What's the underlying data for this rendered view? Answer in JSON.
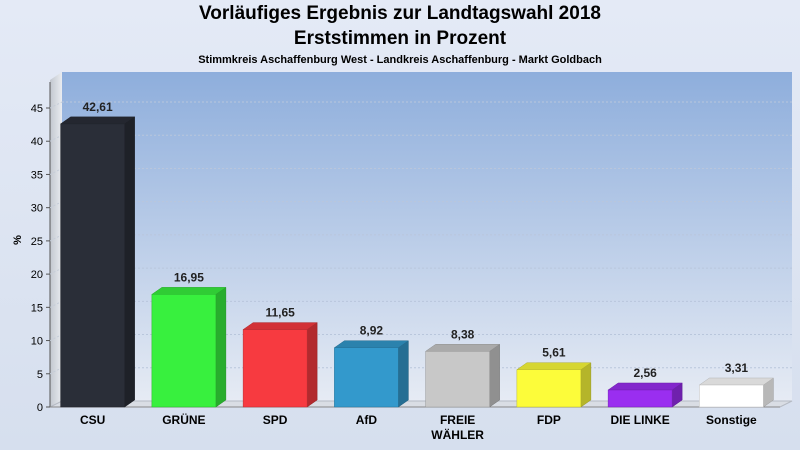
{
  "chart_data": {
    "type": "bar",
    "title": "Vorläufiges Ergebnis zur Landtagswahl 2018",
    "title_line2": "Erststimmen in Prozent",
    "subtitle": "Stimmkreis Aschaffenburg West - Landkreis Aschaffenburg - Markt Goldbach",
    "ylabel": "%",
    "ylim": [
      0,
      48
    ],
    "yticks": [
      "0",
      "5",
      "10",
      "15",
      "20",
      "25",
      "30",
      "35",
      "40",
      "45"
    ],
    "grid": true,
    "categories": [
      "CSU",
      "GRÜNE",
      "SPD",
      "AfD",
      "FREIE WÄHLER",
      "FDP",
      "DIE LINKE",
      "Sonstige"
    ],
    "category_labels": [
      [
        "CSU"
      ],
      [
        "GRÜNE"
      ],
      [
        "SPD"
      ],
      [
        "AfD"
      ],
      [
        "FREIE",
        "WÄHLER"
      ],
      [
        "FDP"
      ],
      [
        "DIE LINKE"
      ],
      [
        "Sonstige"
      ]
    ],
    "values": [
      42.61,
      16.95,
      11.65,
      8.92,
      8.38,
      5.61,
      2.56,
      3.31
    ],
    "value_labels": [
      "42,61",
      "16,95",
      "11,65",
      "8,92",
      "8,38",
      "5,61",
      "2,56",
      "3,31"
    ],
    "colors": [
      "#2a2e38",
      "#38f03e",
      "#f73a40",
      "#3399cc",
      "#c8c8c8",
      "#fcfc3a",
      "#9a2ef0",
      "#ffffff"
    ]
  }
}
